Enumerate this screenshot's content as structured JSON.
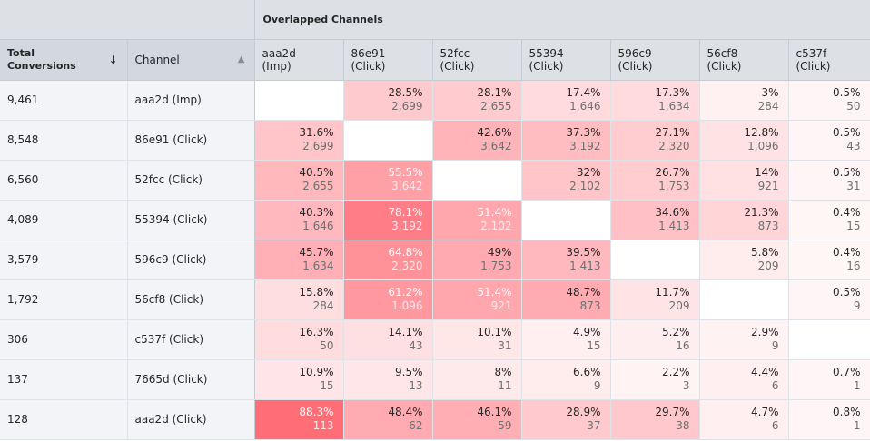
{
  "header": {
    "group_label": "Overlapped Channels",
    "total_label": "Total Conversions",
    "channel_label": "Channel",
    "sort_desc_icon": "arrow-down-icon",
    "sort_neutral_icon": "sort-icon",
    "columns": [
      {
        "id": "aaa2d",
        "type": "(Imp)"
      },
      {
        "id": "86e91",
        "type": "(Click)"
      },
      {
        "id": "52fcc",
        "type": "(Click)"
      },
      {
        "id": "55394",
        "type": "(Click)"
      },
      {
        "id": "596c9",
        "type": "(Click)"
      },
      {
        "id": "56cf8",
        "type": "(Click)"
      },
      {
        "id": "c537f",
        "type": "(Click)"
      }
    ]
  },
  "colors": {
    "heat_base": "#ff6b75",
    "header_bg": "#dde1e6",
    "row_label_bg": "#f2f4f8"
  },
  "rows": [
    {
      "total": "9,461",
      "channel": "aaa2d (Imp)",
      "cells": [
        null,
        {
          "pct": "28.5%",
          "count": "2,699",
          "v": 28.5
        },
        {
          "pct": "28.1%",
          "count": "2,655",
          "v": 28.1
        },
        {
          "pct": "17.4%",
          "count": "1,646",
          "v": 17.4
        },
        {
          "pct": "17.3%",
          "count": "1,634",
          "v": 17.3
        },
        {
          "pct": "3%",
          "count": "284",
          "v": 3
        },
        {
          "pct": "0.5%",
          "count": "50",
          "v": 0.5
        }
      ]
    },
    {
      "total": "8,548",
      "channel": "86e91 (Click)",
      "cells": [
        {
          "pct": "31.6%",
          "count": "2,699",
          "v": 31.6
        },
        null,
        {
          "pct": "42.6%",
          "count": "3,642",
          "v": 42.6
        },
        {
          "pct": "37.3%",
          "count": "3,192",
          "v": 37.3
        },
        {
          "pct": "27.1%",
          "count": "2,320",
          "v": 27.1
        },
        {
          "pct": "12.8%",
          "count": "1,096",
          "v": 12.8
        },
        {
          "pct": "0.5%",
          "count": "43",
          "v": 0.5
        }
      ]
    },
    {
      "total": "6,560",
      "channel": "52fcc (Click)",
      "cells": [
        {
          "pct": "40.5%",
          "count": "2,655",
          "v": 40.5
        },
        {
          "pct": "55.5%",
          "count": "3,642",
          "v": 55.5
        },
        null,
        {
          "pct": "32%",
          "count": "2,102",
          "v": 32
        },
        {
          "pct": "26.7%",
          "count": "1,753",
          "v": 26.7
        },
        {
          "pct": "14%",
          "count": "921",
          "v": 14
        },
        {
          "pct": "0.5%",
          "count": "31",
          "v": 0.5
        }
      ]
    },
    {
      "total": "4,089",
      "channel": "55394 (Click)",
      "cells": [
        {
          "pct": "40.3%",
          "count": "1,646",
          "v": 40.3
        },
        {
          "pct": "78.1%",
          "count": "3,192",
          "v": 78.1
        },
        {
          "pct": "51.4%",
          "count": "2,102",
          "v": 51.4
        },
        null,
        {
          "pct": "34.6%",
          "count": "1,413",
          "v": 34.6
        },
        {
          "pct": "21.3%",
          "count": "873",
          "v": 21.3
        },
        {
          "pct": "0.4%",
          "count": "15",
          "v": 0.4
        }
      ]
    },
    {
      "total": "3,579",
      "channel": "596c9 (Click)",
      "cells": [
        {
          "pct": "45.7%",
          "count": "1,634",
          "v": 45.7
        },
        {
          "pct": "64.8%",
          "count": "2,320",
          "v": 64.8
        },
        {
          "pct": "49%",
          "count": "1,753",
          "v": 49
        },
        {
          "pct": "39.5%",
          "count": "1,413",
          "v": 39.5
        },
        null,
        {
          "pct": "5.8%",
          "count": "209",
          "v": 5.8
        },
        {
          "pct": "0.4%",
          "count": "16",
          "v": 0.4
        }
      ]
    },
    {
      "total": "1,792",
      "channel": "56cf8 (Click)",
      "cells": [
        {
          "pct": "15.8%",
          "count": "284",
          "v": 15.8
        },
        {
          "pct": "61.2%",
          "count": "1,096",
          "v": 61.2
        },
        {
          "pct": "51.4%",
          "count": "921",
          "v": 51.4
        },
        {
          "pct": "48.7%",
          "count": "873",
          "v": 48.7
        },
        {
          "pct": "11.7%",
          "count": "209",
          "v": 11.7
        },
        null,
        {
          "pct": "0.5%",
          "count": "9",
          "v": 0.5
        }
      ]
    },
    {
      "total": "306",
      "channel": "c537f (Click)",
      "cells": [
        {
          "pct": "16.3%",
          "count": "50",
          "v": 16.3
        },
        {
          "pct": "14.1%",
          "count": "43",
          "v": 14.1
        },
        {
          "pct": "10.1%",
          "count": "31",
          "v": 10.1
        },
        {
          "pct": "4.9%",
          "count": "15",
          "v": 4.9
        },
        {
          "pct": "5.2%",
          "count": "16",
          "v": 5.2
        },
        {
          "pct": "2.9%",
          "count": "9",
          "v": 2.9
        },
        null
      ]
    },
    {
      "total": "137",
      "channel": "7665d (Click)",
      "cells": [
        {
          "pct": "10.9%",
          "count": "15",
          "v": 10.9
        },
        {
          "pct": "9.5%",
          "count": "13",
          "v": 9.5
        },
        {
          "pct": "8%",
          "count": "11",
          "v": 8
        },
        {
          "pct": "6.6%",
          "count": "9",
          "v": 6.6
        },
        {
          "pct": "2.2%",
          "count": "3",
          "v": 2.2
        },
        {
          "pct": "4.4%",
          "count": "6",
          "v": 4.4
        },
        {
          "pct": "0.7%",
          "count": "1",
          "v": 0.7
        }
      ]
    },
    {
      "total": "128",
      "channel": "aaa2d (Click)",
      "cells": [
        {
          "pct": "88.3%",
          "count": "113",
          "v": 88.3
        },
        {
          "pct": "48.4%",
          "count": "62",
          "v": 48.4
        },
        {
          "pct": "46.1%",
          "count": "59",
          "v": 46.1
        },
        {
          "pct": "28.9%",
          "count": "37",
          "v": 28.9
        },
        {
          "pct": "29.7%",
          "count": "38",
          "v": 29.7
        },
        {
          "pct": "4.7%",
          "count": "6",
          "v": 4.7
        },
        {
          "pct": "0.8%",
          "count": "1",
          "v": 0.8
        }
      ]
    }
  ]
}
